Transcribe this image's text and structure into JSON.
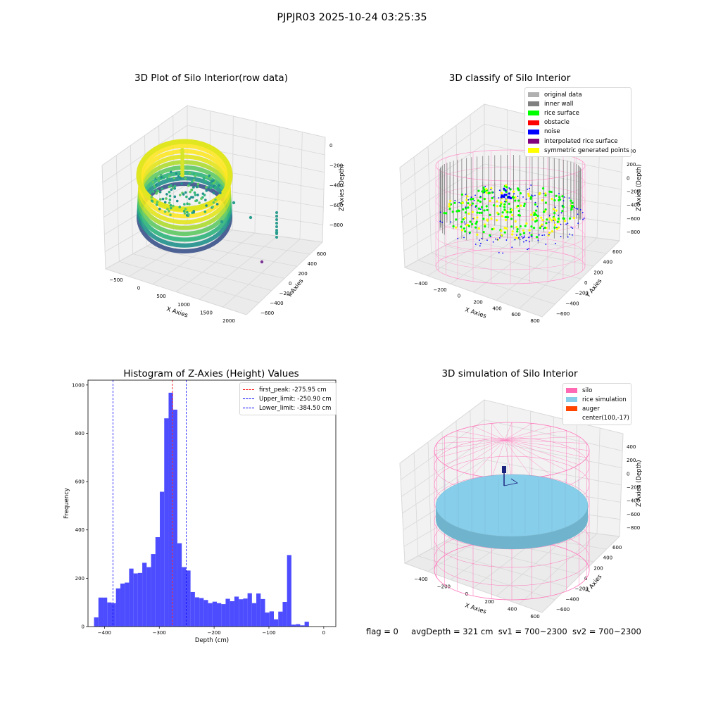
{
  "suptitle": "PJPJR03 2025-10-24 03:25:35",
  "status": {
    "flag": "flag = 0",
    "avg_depth": "avgDepth = 321 cm",
    "sv1": "sv1 = 700~2300",
    "sv2": "sv2 = 700~2300"
  },
  "colors": {
    "hist_bar": "#4d4dff",
    "first_peak": "#ff0000",
    "limits": "#0000ff",
    "original": "#b0b0b0",
    "inner_wall": "#808080",
    "rice_surface": "#00ff00",
    "obstacle": "#ff0000",
    "noise": "#0000ff",
    "interpolated": "#800080",
    "symmetric": "#ffff00",
    "silo": "#ff69b4",
    "rice_sim": "#87ceeb",
    "auger": "#ff4500"
  },
  "chart_data": [
    {
      "type": "scatter",
      "title": "3D Plot of Silo Interior(row data)",
      "xlabel": "X Axies",
      "ylabel": "Y Axies",
      "zlabel": "Z Axies (Depth)",
      "xticks": [
        "−500",
        "0",
        "500",
        "1000",
        "1500",
        "2000"
      ],
      "yticks": [
        "600",
        "400",
        "200",
        "0",
        "−200",
        "−400",
        "−600"
      ],
      "zticks": [
        "0",
        "−200",
        "−400",
        "−600",
        "−800"
      ],
      "colormap": "viridis",
      "outlier_points": [
        {
          "x": 900,
          "y": 100,
          "z": -780
        },
        {
          "x": 1100,
          "y": 120,
          "z": -760
        },
        {
          "x": 1300,
          "y": 130,
          "z": -740
        },
        {
          "x": 1600,
          "y": 140,
          "z": -720
        },
        {
          "x": 1700,
          "y": -300,
          "z": -880
        }
      ]
    },
    {
      "type": "scatter",
      "title": "3D classify of Silo Interior",
      "xlabel": "X Axies",
      "ylabel": "Y Axies",
      "zlabel": "Z Axies (Depth)",
      "xticks": [
        "−400",
        "−200",
        "0",
        "200",
        "400",
        "600",
        "800"
      ],
      "yticks": [
        "600",
        "400",
        "200",
        "0",
        "−200",
        "−400",
        "−600"
      ],
      "zticks": [
        "400",
        "200",
        "0",
        "−200",
        "−400",
        "−600",
        "−800"
      ],
      "legend": [
        "original data",
        "inner wall",
        "rice surface",
        "obstacle",
        "noise",
        "interpolated rice surface",
        "symmetric generated points"
      ],
      "legend_position": "upper right"
    },
    {
      "type": "bar",
      "title": "Histogram of Z-Axies (Height) Values",
      "xlabel": "Depth (cm)",
      "ylabel": "Frequency",
      "xlim": [
        -430,
        22
      ],
      "ylim": [
        0,
        1020
      ],
      "xticks": [
        -400,
        -300,
        -200,
        -100,
        0
      ],
      "yticks": [
        0,
        200,
        400,
        600,
        800,
        1000
      ],
      "bin_width": 8.0,
      "x_start": -419.0,
      "values": [
        38,
        120,
        120,
        100,
        97,
        158,
        178,
        182,
        240,
        220,
        222,
        264,
        246,
        300,
        370,
        558,
        862,
        968,
        898,
        345,
        246,
        232,
        143,
        121,
        118,
        110,
        97,
        103,
        97,
        93,
        115,
        105,
        124,
        113,
        116,
        138,
        97,
        137,
        114,
        58,
        63,
        30,
        62,
        102,
        296,
        8,
        10,
        5,
        20
      ],
      "vlines": [
        {
          "label": "first_peak: -275.95 cm",
          "x": -275.95,
          "color": "#ff0000"
        },
        {
          "label": "Upper_limit: -250.90 cm",
          "x": -250.9,
          "color": "#0000ff"
        },
        {
          "label": "Lower_limit: -384.50 cm",
          "x": -384.5,
          "color": "#0000ff"
        }
      ],
      "legend_position": "upper right"
    },
    {
      "type": "surface",
      "title": "3D simulation of Silo Interior",
      "xlabel": "X Axies",
      "ylabel": "Y Axies",
      "zlabel": "Z Axies (Depth)",
      "xticks": [
        "−400",
        "−200",
        "0",
        "200",
        "400",
        "600"
      ],
      "yticks": [
        "600",
        "400",
        "200",
        "0",
        "−200",
        "−400",
        "−600"
      ],
      "zticks": [
        "400",
        "200",
        "0",
        "−200",
        "−400",
        "−600",
        "−800"
      ],
      "legend": [
        "silo",
        "rice simulation",
        "auger",
        "center(100,-17)"
      ],
      "legend_position": "upper right"
    }
  ]
}
